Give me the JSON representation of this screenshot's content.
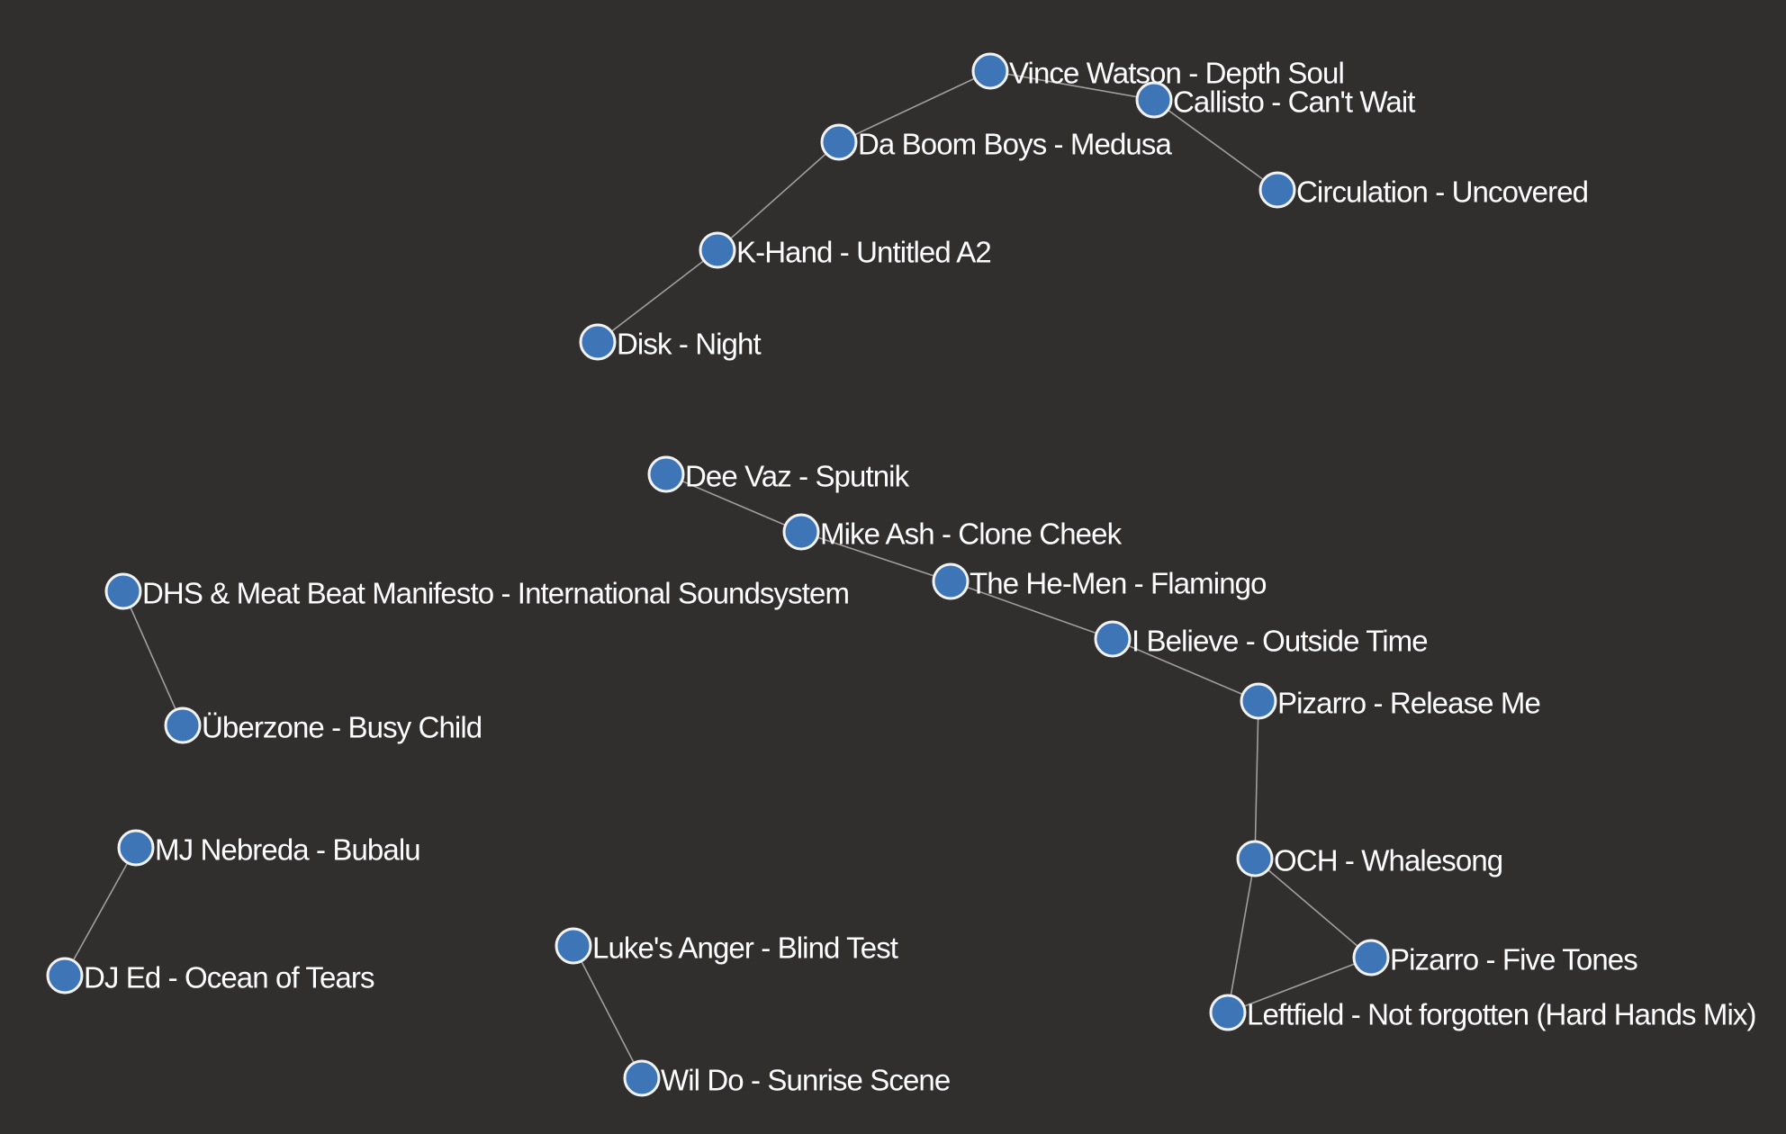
{
  "graph": {
    "background": "#312e2e",
    "node_fill": "#3d75b6",
    "node_stroke": "#f2f2f2",
    "edge_color": "#b5b2b2",
    "label_color": "#ffffff",
    "nodes": [
      {
        "id": "vince-watson",
        "label": "Vince Watson - Depth Soul"
      },
      {
        "id": "callisto",
        "label": "Callisto - Can't Wait"
      },
      {
        "id": "da-boom-boys",
        "label": "Da Boom Boys - Medusa"
      },
      {
        "id": "circulation",
        "label": "Circulation - Uncovered"
      },
      {
        "id": "k-hand",
        "label": "K-Hand - Untitled A2"
      },
      {
        "id": "disk",
        "label": "Disk - Night"
      },
      {
        "id": "dee-vaz",
        "label": "Dee Vaz - Sputnik"
      },
      {
        "id": "mike-ash",
        "label": "Mike Ash - Clone Cheek"
      },
      {
        "id": "he-men",
        "label": "The He-Men - Flamingo"
      },
      {
        "id": "i-believe",
        "label": "I Believe - Outside Time"
      },
      {
        "id": "pizarro-release",
        "label": "Pizarro - Release Me"
      },
      {
        "id": "dhs",
        "label": "DHS & Meat Beat Manifesto - International Soundsystem"
      },
      {
        "id": "uberzone",
        "label": "Überzone - Busy Child"
      },
      {
        "id": "mj-nebreda",
        "label": "MJ Nebreda - Bubalu"
      },
      {
        "id": "och",
        "label": "OCH - Whalesong"
      },
      {
        "id": "dj-ed",
        "label": "DJ Ed - Ocean of Tears"
      },
      {
        "id": "lukes-anger",
        "label": "Luke's Anger - Blind Test"
      },
      {
        "id": "pizarro-five",
        "label": "Pizarro - Five Tones"
      },
      {
        "id": "leftfield",
        "label": "Leftfield - Not forgotten (Hard Hands Mix)"
      },
      {
        "id": "wil-do",
        "label": "Wil Do - Sunrise Scene"
      }
    ],
    "edges": [
      [
        "vince-watson",
        "callisto"
      ],
      [
        "vince-watson",
        "da-boom-boys"
      ],
      [
        "callisto",
        "circulation"
      ],
      [
        "da-boom-boys",
        "k-hand"
      ],
      [
        "k-hand",
        "disk"
      ],
      [
        "dee-vaz",
        "mike-ash"
      ],
      [
        "mike-ash",
        "he-men"
      ],
      [
        "he-men",
        "i-believe"
      ],
      [
        "i-believe",
        "pizarro-release"
      ],
      [
        "pizarro-release",
        "och"
      ],
      [
        "och",
        "pizarro-five"
      ],
      [
        "och",
        "leftfield"
      ],
      [
        "leftfield",
        "pizarro-five"
      ],
      [
        "dhs",
        "uberzone"
      ],
      [
        "mj-nebreda",
        "dj-ed"
      ],
      [
        "lukes-anger",
        "wil-do"
      ]
    ]
  }
}
